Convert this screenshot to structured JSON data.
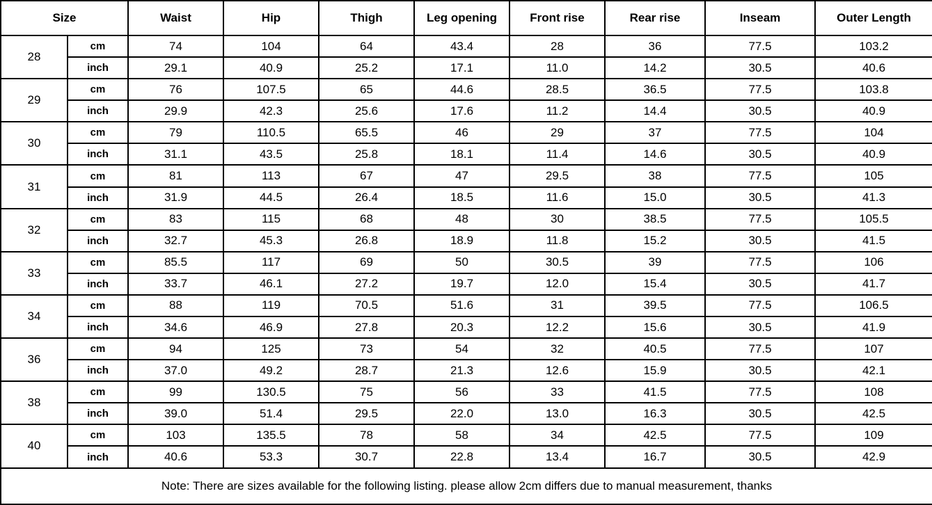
{
  "table": {
    "headers": [
      "Size",
      "Waist",
      "Hip",
      "Thigh",
      "Leg opening",
      "Front rise",
      "Rear rise",
      "Inseam",
      "Outer Length"
    ],
    "unit_labels": [
      "cm",
      "inch"
    ],
    "rows": [
      {
        "size": "28",
        "cm": [
          "74",
          "104",
          "64",
          "43.4",
          "28",
          "36",
          "77.5",
          "103.2"
        ],
        "inch": [
          "29.1",
          "40.9",
          "25.2",
          "17.1",
          "11.0",
          "14.2",
          "30.5",
          "40.6"
        ]
      },
      {
        "size": "29",
        "cm": [
          "76",
          "107.5",
          "65",
          "44.6",
          "28.5",
          "36.5",
          "77.5",
          "103.8"
        ],
        "inch": [
          "29.9",
          "42.3",
          "25.6",
          "17.6",
          "11.2",
          "14.4",
          "30.5",
          "40.9"
        ]
      },
      {
        "size": "30",
        "cm": [
          "79",
          "110.5",
          "65.5",
          "46",
          "29",
          "37",
          "77.5",
          "104"
        ],
        "inch": [
          "31.1",
          "43.5",
          "25.8",
          "18.1",
          "11.4",
          "14.6",
          "30.5",
          "40.9"
        ]
      },
      {
        "size": "31",
        "cm": [
          "81",
          "113",
          "67",
          "47",
          "29.5",
          "38",
          "77.5",
          "105"
        ],
        "inch": [
          "31.9",
          "44.5",
          "26.4",
          "18.5",
          "11.6",
          "15.0",
          "30.5",
          "41.3"
        ]
      },
      {
        "size": "32",
        "cm": [
          "83",
          "115",
          "68",
          "48",
          "30",
          "38.5",
          "77.5",
          "105.5"
        ],
        "inch": [
          "32.7",
          "45.3",
          "26.8",
          "18.9",
          "11.8",
          "15.2",
          "30.5",
          "41.5"
        ]
      },
      {
        "size": "33",
        "cm": [
          "85.5",
          "117",
          "69",
          "50",
          "30.5",
          "39",
          "77.5",
          "106"
        ],
        "inch": [
          "33.7",
          "46.1",
          "27.2",
          "19.7",
          "12.0",
          "15.4",
          "30.5",
          "41.7"
        ]
      },
      {
        "size": "34",
        "cm": [
          "88",
          "119",
          "70.5",
          "51.6",
          "31",
          "39.5",
          "77.5",
          "106.5"
        ],
        "inch": [
          "34.6",
          "46.9",
          "27.8",
          "20.3",
          "12.2",
          "15.6",
          "30.5",
          "41.9"
        ]
      },
      {
        "size": "36",
        "cm": [
          "94",
          "125",
          "73",
          "54",
          "32",
          "40.5",
          "77.5",
          "107"
        ],
        "inch": [
          "37.0",
          "49.2",
          "28.7",
          "21.3",
          "12.6",
          "15.9",
          "30.5",
          "42.1"
        ]
      },
      {
        "size": "38",
        "cm": [
          "99",
          "130.5",
          "75",
          "56",
          "33",
          "41.5",
          "77.5",
          "108"
        ],
        "inch": [
          "39.0",
          "51.4",
          "29.5",
          "22.0",
          "13.0",
          "16.3",
          "30.5",
          "42.5"
        ]
      },
      {
        "size": "40",
        "cm": [
          "103",
          "135.5",
          "78",
          "58",
          "34",
          "42.5",
          "77.5",
          "109"
        ],
        "inch": [
          "40.6",
          "53.3",
          "30.7",
          "22.8",
          "13.4",
          "16.7",
          "30.5",
          "42.9"
        ]
      }
    ],
    "note": "Note: There are sizes available for the following listing. please allow 2cm differs due to manual measurement, thanks"
  }
}
